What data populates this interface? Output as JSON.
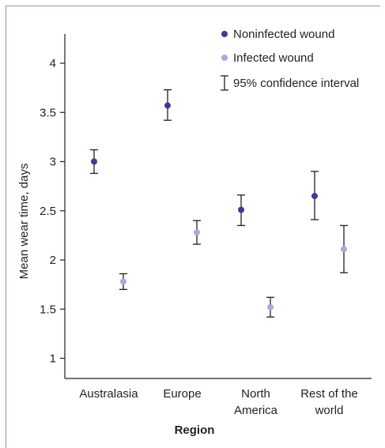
{
  "chart_data": {
    "type": "scatter",
    "title": "",
    "xlabel": "Region",
    "ylabel": "Mean wear time, days",
    "categories": [
      [
        "Australasia"
      ],
      [
        "Europe"
      ],
      [
        "North",
        "America"
      ],
      [
        "Rest of the",
        "world"
      ]
    ],
    "ylim": [
      0.8,
      4.4
    ],
    "yticks": [
      1,
      1.5,
      2,
      2.5,
      3,
      3.5,
      4
    ],
    "ytick_labels": [
      "1",
      "1.5",
      "2",
      "2.5",
      "3",
      "3.5",
      "4"
    ],
    "grid": false,
    "legend_position": "top-right",
    "series": [
      {
        "name": "Noninfected wound",
        "color": "#3d3d8f",
        "points": [
          {
            "category": "Australasia",
            "mean": 3.0,
            "ci_low": 2.88,
            "ci_high": 3.12
          },
          {
            "category": "Europe",
            "mean": 3.57,
            "ci_low": 3.42,
            "ci_high": 3.73
          },
          {
            "category": "North America",
            "mean": 2.51,
            "ci_low": 2.35,
            "ci_high": 2.66
          },
          {
            "category": "Rest of the world",
            "mean": 2.65,
            "ci_low": 2.41,
            "ci_high": 2.9
          }
        ]
      },
      {
        "name": "Infected wound",
        "color": "#a9a9dc",
        "points": [
          {
            "category": "Australasia",
            "mean": 1.78,
            "ci_low": 1.7,
            "ci_high": 1.86
          },
          {
            "category": "Europe",
            "mean": 2.28,
            "ci_low": 2.16,
            "ci_high": 2.4
          },
          {
            "category": "North America",
            "mean": 1.52,
            "ci_low": 1.42,
            "ci_high": 1.62
          },
          {
            "category": "Rest of the world",
            "mean": 2.11,
            "ci_low": 1.87,
            "ci_high": 2.35
          }
        ]
      }
    ],
    "legend": {
      "noninfected_label": "Noninfected wound",
      "infected_label": "Infected wound",
      "ci_label": "95% confidence interval"
    }
  }
}
